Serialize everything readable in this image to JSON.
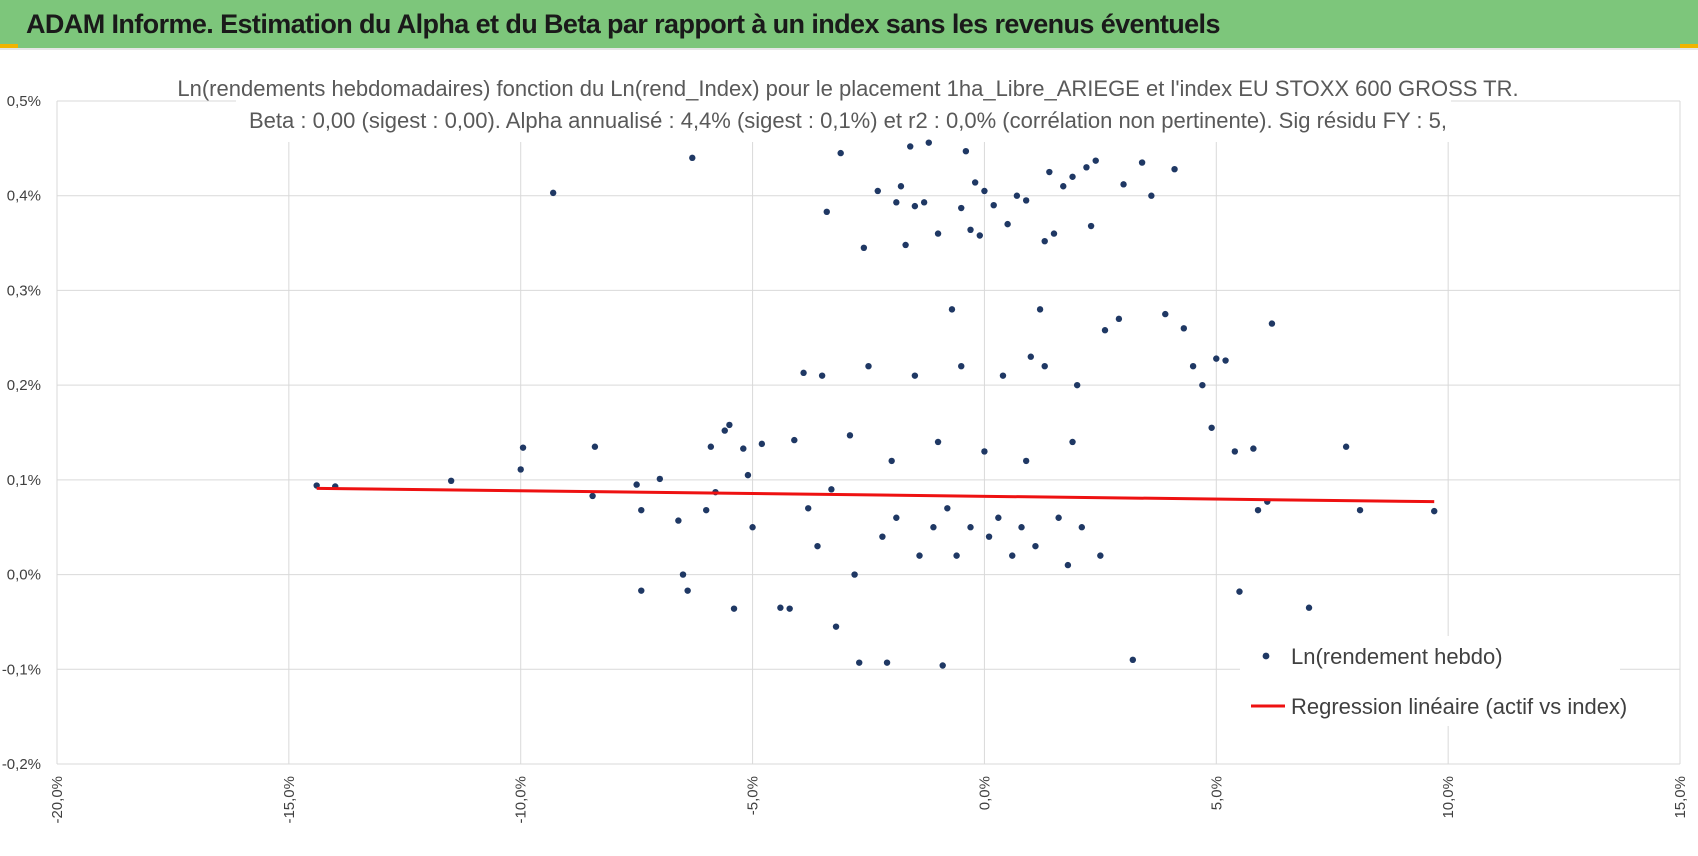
{
  "banner": {
    "title": "ADAM Informe. Estimation du Alpha et du Beta par rapport à un index sans les revenus éventuels"
  },
  "colors": {
    "banner_bg": "#7dc67b",
    "corner_accent": "#f0b400",
    "point": "#1f3864",
    "regression": "#ee1111",
    "grid": "#d9d9d9"
  },
  "chart_data": {
    "type": "scatter",
    "title": "Ln(rendements hebdomadaires) fonction du Ln(rend_Index) pour le placement 1ha_Libre_ARIEGE et l'index EU STOXX 600 GROSS TR.",
    "subtitle": "Beta : 0,00 (sigest : 0,00).  Alpha annualisé : 4,4% (sigest : 0,1%) et r2 : 0,0% (corrélation non pertinente). Sig résidu FY : 5,",
    "xlabel": "",
    "ylabel": "",
    "xlim": [
      -20,
      15
    ],
    "ylim": [
      -0.2,
      0.5
    ],
    "x_ticks": [
      -20,
      -15,
      -10,
      -5,
      0,
      5,
      10,
      15
    ],
    "y_ticks": [
      -0.2,
      -0.1,
      0.0,
      0.1,
      0.2,
      0.3,
      0.4,
      0.5
    ],
    "x_tick_labels": [
      "-20,0%",
      "-15,0%",
      "-10,0%",
      "-5,0%",
      "0,0%",
      "5,0%",
      "10,0%",
      "15,0%"
    ],
    "y_tick_labels": [
      "-0,2%",
      "-0,1%",
      "0,0%",
      "0,1%",
      "0,2%",
      "0,3%",
      "0,4%",
      "0,5%"
    ],
    "grid": true,
    "legend_position": "bottom-right",
    "series": [
      {
        "name": "Ln(rendement hebdo)",
        "kind": "scatter",
        "points": [
          [
            -14.4,
            0.094
          ],
          [
            -14.0,
            0.093
          ],
          [
            -11.5,
            0.099
          ],
          [
            -10.0,
            0.111
          ],
          [
            -9.95,
            0.134
          ],
          [
            -9.3,
            0.403
          ],
          [
            -8.4,
            0.135
          ],
          [
            -8.45,
            0.083
          ],
          [
            -7.5,
            0.095
          ],
          [
            -7.4,
            0.068
          ],
          [
            -7.4,
            -0.017
          ],
          [
            -7.0,
            0.101
          ],
          [
            -6.6,
            0.057
          ],
          [
            -6.5,
            0.0
          ],
          [
            -6.4,
            -0.017
          ],
          [
            -6.3,
            0.44
          ],
          [
            -6.0,
            0.068
          ],
          [
            -5.9,
            0.135
          ],
          [
            -5.8,
            0.087
          ],
          [
            -5.6,
            0.152
          ],
          [
            -5.5,
            0.158
          ],
          [
            -5.4,
            -0.036
          ],
          [
            -5.2,
            0.133
          ],
          [
            -5.1,
            0.105
          ],
          [
            -5.0,
            0.05
          ],
          [
            -4.8,
            0.138
          ],
          [
            -4.4,
            -0.035
          ],
          [
            -4.2,
            -0.036
          ],
          [
            -4.1,
            0.142
          ],
          [
            -3.9,
            0.213
          ],
          [
            -3.5,
            0.21
          ],
          [
            -3.4,
            0.383
          ],
          [
            -3.2,
            -0.055
          ],
          [
            -3.1,
            0.445
          ],
          [
            -2.9,
            0.147
          ],
          [
            -2.7,
            -0.093
          ],
          [
            -2.6,
            0.345
          ],
          [
            -2.5,
            0.22
          ],
          [
            -2.3,
            0.405
          ],
          [
            -2.1,
            -0.093
          ],
          [
            -1.9,
            0.393
          ],
          [
            -1.8,
            0.41
          ],
          [
            -1.7,
            0.348
          ],
          [
            -1.6,
            0.452
          ],
          [
            -1.5,
            0.389
          ],
          [
            -1.3,
            0.393
          ],
          [
            -1.2,
            0.456
          ],
          [
            -1.0,
            0.36
          ],
          [
            -0.9,
            -0.096
          ],
          [
            -0.7,
            0.28
          ],
          [
            -0.5,
            0.387
          ],
          [
            -0.4,
            0.447
          ],
          [
            -0.3,
            0.364
          ],
          [
            -0.2,
            0.414
          ],
          [
            -0.1,
            0.358
          ],
          [
            0.0,
            0.405
          ],
          [
            0.2,
            0.39
          ],
          [
            0.5,
            0.37
          ],
          [
            0.7,
            0.4
          ],
          [
            0.9,
            0.395
          ],
          [
            1.0,
            0.23
          ],
          [
            1.2,
            0.28
          ],
          [
            1.3,
            0.352
          ],
          [
            1.4,
            0.425
          ],
          [
            1.5,
            0.36
          ],
          [
            1.7,
            0.41
          ],
          [
            1.9,
            0.42
          ],
          [
            2.2,
            0.43
          ],
          [
            2.3,
            0.368
          ],
          [
            2.4,
            0.437
          ],
          [
            2.6,
            0.258
          ],
          [
            2.9,
            0.27
          ],
          [
            3.0,
            0.412
          ],
          [
            3.2,
            -0.09
          ],
          [
            3.4,
            0.435
          ],
          [
            3.6,
            0.4
          ],
          [
            3.9,
            0.275
          ],
          [
            4.1,
            0.428
          ],
          [
            4.3,
            0.26
          ],
          [
            4.5,
            0.22
          ],
          [
            4.7,
            0.2
          ],
          [
            4.9,
            0.155
          ],
          [
            5.0,
            0.228
          ],
          [
            5.2,
            0.226
          ],
          [
            5.4,
            0.13
          ],
          [
            5.5,
            -0.018
          ],
          [
            5.8,
            0.133
          ],
          [
            5.9,
            0.068
          ],
          [
            6.1,
            0.077
          ],
          [
            6.2,
            0.265
          ],
          [
            7.0,
            -0.035
          ],
          [
            7.8,
            0.135
          ],
          [
            8.1,
            0.068
          ],
          [
            9.7,
            0.067
          ],
          [
            -3.8,
            0.07
          ],
          [
            -3.6,
            0.03
          ],
          [
            -3.3,
            0.09
          ],
          [
            -2.8,
            0.0
          ],
          [
            -2.2,
            0.04
          ],
          [
            -1.9,
            0.06
          ],
          [
            -1.4,
            0.02
          ],
          [
            -1.1,
            0.05
          ],
          [
            -0.8,
            0.07
          ],
          [
            -0.6,
            0.02
          ],
          [
            -0.3,
            0.05
          ],
          [
            0.1,
            0.04
          ],
          [
            0.3,
            0.06
          ],
          [
            0.6,
            0.02
          ],
          [
            0.8,
            0.05
          ],
          [
            1.1,
            0.03
          ],
          [
            1.6,
            0.06
          ],
          [
            1.8,
            0.01
          ],
          [
            2.1,
            0.05
          ],
          [
            2.5,
            0.02
          ],
          [
            -2.0,
            0.12
          ],
          [
            -1.0,
            0.14
          ],
          [
            0.0,
            0.13
          ],
          [
            0.9,
            0.12
          ],
          [
            1.9,
            0.14
          ],
          [
            -1.5,
            0.21
          ],
          [
            -0.5,
            0.22
          ],
          [
            0.4,
            0.21
          ],
          [
            1.3,
            0.22
          ],
          [
            2.0,
            0.2
          ]
        ]
      },
      {
        "name": "Regression linéaire (actif vs index)",
        "kind": "line",
        "points": [
          [
            -14.4,
            0.091
          ],
          [
            9.7,
            0.077
          ]
        ]
      }
    ]
  },
  "legend": {
    "scatter_label": "Ln(rendement hebdo)",
    "line_label": "Regression linéaire (actif vs index)"
  }
}
